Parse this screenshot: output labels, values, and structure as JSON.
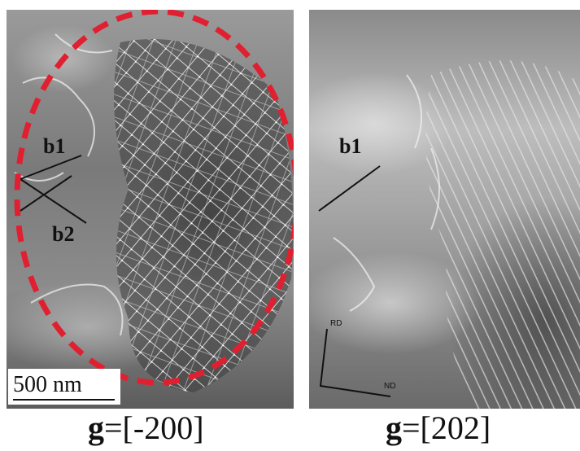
{
  "left_panel": {
    "vector_b1": "b1",
    "vector_b2": "b2",
    "scale_bar": "500 nm",
    "caption_bold": "g",
    "caption_rest": "=[-200]",
    "highlight_color": "#e02030"
  },
  "right_panel": {
    "vector_b1": "b1",
    "axis_rd": "RD",
    "axis_nd": "ND",
    "caption_bold": "g",
    "caption_rest": "=[202]"
  }
}
